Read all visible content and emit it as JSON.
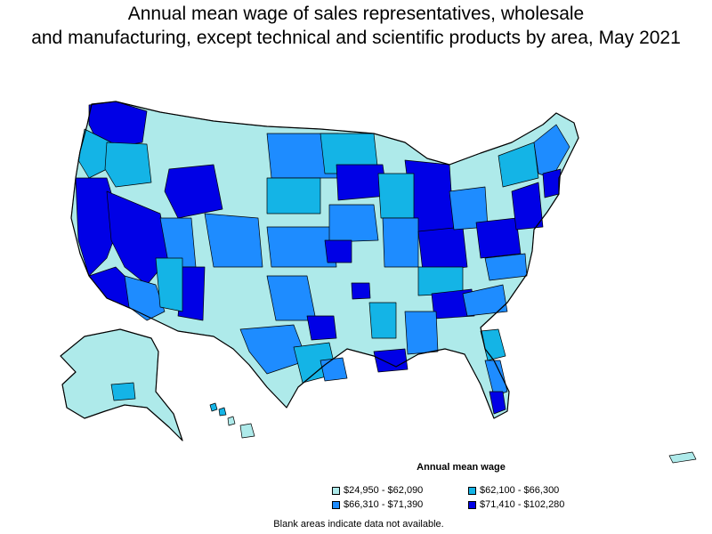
{
  "title_line1": "Annual mean wage of sales representatives, wholesale",
  "title_line2": "and manufacturing, except technical and scientific products by area, May 2021",
  "legend": {
    "title": "Annual mean wage",
    "items": [
      {
        "label": "$24,950 - $62,090",
        "color": "#aeeaea"
      },
      {
        "label": "$62,100 - $66,300",
        "color": "#14b4e6"
      },
      {
        "label": "$66,310 - $71,390",
        "color": "#1e8cff"
      },
      {
        "label": "$71,410 - $102,280",
        "color": "#0000e6"
      }
    ]
  },
  "note": "Blank areas indicate data not available.",
  "map_data": {
    "type": "choropleth",
    "unit": "US metropolitan and nonmetropolitan areas",
    "bins": [
      {
        "range": [
          24950,
          62090
        ],
        "color": "#aeeaea"
      },
      {
        "range": [
          62100,
          66300
        ],
        "color": "#14b4e6"
      },
      {
        "range": [
          66310,
          71390
        ],
        "color": "#1e8cff"
      },
      {
        "range": [
          71410,
          102280
        ],
        "color": "#0000e6"
      }
    ]
  }
}
